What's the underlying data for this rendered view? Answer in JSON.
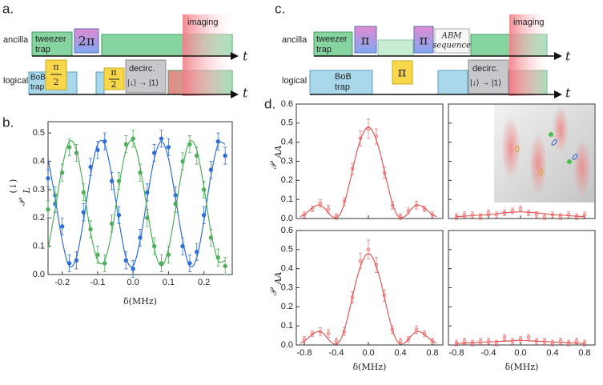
{
  "panel_labels": {
    "a": "a.",
    "c": "c."
  },
  "diagram_a": {
    "rows": [
      "ancilla",
      "logical"
    ],
    "time": [
      "t",
      "t"
    ],
    "tweezer": [
      "tweezer",
      "trap"
    ],
    "rot1": "2π",
    "imaging": "imaging",
    "bob": [
      "BoB",
      "trap"
    ],
    "half1": {
      "num": "π",
      "den": "2"
    },
    "half2": {
      "num": "π",
      "den": "2"
    },
    "decirc": [
      "decirc.",
      "|↓⟩ → |1⟩"
    ]
  },
  "diagram_c": {
    "rows": [
      "ancilla",
      "logical"
    ],
    "time": [
      "t",
      "t"
    ],
    "tweezer": [
      "tweezer",
      "trap"
    ],
    "pi1": "π",
    "pi2": "π",
    "abm": [
      "ABM",
      "sequence"
    ],
    "imaging": "imaging",
    "bob": [
      "BoB",
      "trap"
    ],
    "pi3": "π",
    "decirc": [
      "decirc.",
      "|↓⟩ → |1⟩"
    ]
  },
  "chart_data": [
    {
      "type": "scatter",
      "panel_label": "b.",
      "xlabel": "δ(MHz)",
      "ylabel": {
        "base": "𝒫",
        "sub": "L",
        "sup": "(↓)"
      },
      "xlim": [
        -0.24,
        0.28
      ],
      "ylim": [
        0,
        0.54
      ],
      "xticks": [
        -0.2,
        -0.1,
        {
          "value": 0,
          "label": "0.0"
        },
        0.1,
        0.2
      ],
      "yticks": [
        {
          "value": 0,
          "label": "0.0"
        },
        0.1,
        0.2,
        0.3,
        0.4,
        0.5
      ],
      "series": [
        {
          "style": "markers",
          "color": "#2f6fd6",
          "x": [
            -0.24,
            -0.22,
            -0.2,
            -0.18,
            -0.16,
            -0.14,
            -0.12,
            -0.1,
            -0.08,
            -0.06,
            -0.04,
            -0.02,
            0,
            0.02,
            0.04,
            0.06,
            0.08,
            0.1,
            0.12,
            0.14,
            0.16,
            0.18,
            0.2,
            0.22,
            0.24,
            0.26
          ],
          "values": [
            0.34,
            0.25,
            0.17,
            0.04,
            0.05,
            0.22,
            0.38,
            0.44,
            0.47,
            0.33,
            0.21,
            0.05,
            0.02,
            0.13,
            0.29,
            0.43,
            0.48,
            0.45,
            0.28,
            0.1,
            0.04,
            0.08,
            0.21,
            0.37,
            0.47,
            0.42
          ],
          "errors": [
            0.03,
            0.03,
            0.03,
            0.03,
            0.03,
            0.03,
            0.03,
            0.03,
            0.03,
            0.03,
            0.03,
            0.03,
            0.03,
            0.03,
            0.03,
            0.03,
            0.03,
            0.03,
            0.03,
            0.03,
            0.03,
            0.03,
            0.03,
            0.03,
            0.03,
            0.03
          ]
        },
        {
          "style": "markers",
          "color": "#4fae5c",
          "x": [
            -0.24,
            -0.22,
            -0.2,
            -0.18,
            -0.16,
            -0.14,
            -0.12,
            -0.1,
            -0.08,
            -0.06,
            -0.04,
            -0.02,
            0,
            0.02,
            0.04,
            0.06,
            0.08,
            0.1,
            0.12,
            0.14,
            0.16,
            0.18,
            0.2,
            0.22,
            0.24,
            0.26
          ],
          "values": [
            0.23,
            0.28,
            0.36,
            0.45,
            0.43,
            0.29,
            0.16,
            0.07,
            0.04,
            0.18,
            0.33,
            0.46,
            0.48,
            0.36,
            0.2,
            0.1,
            0.04,
            0.07,
            0.25,
            0.4,
            0.46,
            0.42,
            0.3,
            0.13,
            0.06,
            0.03
          ],
          "errors": [
            0.03,
            0.03,
            0.03,
            0.03,
            0.03,
            0.03,
            0.03,
            0.03,
            0.03,
            0.03,
            0.03,
            0.03,
            0.03,
            0.03,
            0.03,
            0.03,
            0.03,
            0.03,
            0.03,
            0.03,
            0.03,
            0.03,
            0.03,
            0.03,
            0.03,
            0.03
          ]
        },
        {
          "style": "line",
          "color": "#2f6fd6",
          "x": [
            -0.24,
            -0.22,
            -0.2,
            -0.18,
            -0.16,
            -0.14,
            -0.12,
            -0.1,
            -0.08,
            -0.06,
            -0.04,
            -0.02,
            0,
            0.02,
            0.04,
            0.06,
            0.08,
            0.1,
            0.12,
            0.14,
            0.16,
            0.18,
            0.2,
            0.22,
            0.24,
            0.26
          ],
          "values": [
            0.41,
            0.27,
            0.12,
            0.03,
            0.06,
            0.19,
            0.35,
            0.46,
            0.46,
            0.35,
            0.19,
            0.06,
            0.03,
            0.12,
            0.27,
            0.41,
            0.47,
            0.41,
            0.27,
            0.12,
            0.03,
            0.06,
            0.19,
            0.35,
            0.46,
            0.46
          ]
        },
        {
          "style": "line",
          "color": "#4fae5c",
          "x": [
            -0.24,
            -0.22,
            -0.2,
            -0.18,
            -0.16,
            -0.14,
            -0.12,
            -0.1,
            -0.08,
            -0.06,
            -0.04,
            -0.02,
            0,
            0.02,
            0.04,
            0.06,
            0.08,
            0.1,
            0.12,
            0.14,
            0.16,
            0.18,
            0.2,
            0.22,
            0.24,
            0.26
          ],
          "values": [
            0.09,
            0.23,
            0.38,
            0.47,
            0.44,
            0.31,
            0.15,
            0.05,
            0.05,
            0.15,
            0.31,
            0.44,
            0.47,
            0.38,
            0.23,
            0.09,
            0.03,
            0.09,
            0.23,
            0.38,
            0.47,
            0.44,
            0.31,
            0.15,
            0.05,
            0.05
          ]
        }
      ]
    },
    {
      "type": "scatter",
      "panel_label": "d.",
      "ylabel": {
        "base": "𝒫",
        "sub": "AA"
      },
      "xtick_labels": false,
      "xlim": [
        -0.9,
        0.93
      ],
      "ylim": [
        0,
        0.6
      ],
      "xticks": [
        -0.8,
        -0.4,
        {
          "value": 0,
          "label": "0.0"
        },
        0.4,
        0.8
      ],
      "yticks": [
        {
          "value": 0,
          "label": "0.0"
        },
        0.1,
        0.2,
        0.3,
        0.4,
        0.5,
        0.6
      ],
      "series": [
        {
          "style": "markers",
          "color": "#f07878",
          "x": [
            -0.8,
            -0.7,
            -0.6,
            -0.5,
            -0.4,
            -0.3,
            -0.2,
            -0.1,
            0,
            0.1,
            0.2,
            0.3,
            0.4,
            0.5,
            0.6,
            0.7,
            0.8
          ],
          "values": [
            0.02,
            0.05,
            0.08,
            0.05,
            0.01,
            0.09,
            0.26,
            0.42,
            0.47,
            0.43,
            0.24,
            0.07,
            0.01,
            0.04,
            0.07,
            0.05,
            0.02
          ],
          "errors": [
            0.015,
            0.015,
            0.02,
            0.02,
            0.015,
            0.02,
            0.03,
            0.04,
            0.05,
            0.04,
            0.03,
            0.02,
            0.015,
            0.015,
            0.02,
            0.015,
            0.015
          ]
        },
        {
          "style": "line",
          "color": "#e05a5a",
          "x": [
            -0.85,
            -0.8,
            -0.75,
            -0.7,
            -0.65,
            -0.6,
            -0.55,
            -0.5,
            -0.45,
            -0.4,
            -0.35,
            -0.3,
            -0.25,
            -0.2,
            -0.15,
            -0.1,
            -0.05,
            0,
            0.05,
            0.1,
            0.15,
            0.2,
            0.25,
            0.3,
            0.35,
            0.4,
            0.45,
            0.5,
            0.55,
            0.6,
            0.65,
            0.7,
            0.75,
            0.8,
            0.85
          ],
          "values": [
            0.01,
            0.02,
            0.038,
            0.055,
            0.068,
            0.07,
            0.055,
            0.03,
            0.01,
            0.005,
            0.025,
            0.08,
            0.16,
            0.25,
            0.34,
            0.41,
            0.46,
            0.48,
            0.46,
            0.41,
            0.34,
            0.25,
            0.16,
            0.08,
            0.025,
            0.005,
            0.01,
            0.03,
            0.055,
            0.07,
            0.068,
            0.055,
            0.038,
            0.02,
            0.01
          ]
        }
      ]
    },
    {
      "type": "scatter",
      "xtick_labels": false,
      "ytick_labels": false,
      "xlim": [
        -0.9,
        0.93
      ],
      "ylim": [
        0,
        0.6
      ],
      "xticks": [
        -0.8,
        -0.4,
        {
          "value": 0,
          "label": "0.0"
        },
        0.4,
        0.8
      ],
      "yticks": [
        {
          "value": 0,
          "label": "0.0"
        },
        0.1,
        0.2,
        0.3,
        0.4,
        0.5,
        0.6
      ],
      "series": [
        {
          "style": "markers",
          "color": "#f07878",
          "x": [
            -0.8,
            -0.7,
            -0.6,
            -0.5,
            -0.4,
            -0.3,
            -0.2,
            -0.1,
            0,
            0.1,
            0.2,
            0.3,
            0.4,
            0.5,
            0.6,
            0.7,
            0.8
          ],
          "values": [
            0.01,
            0.02,
            0.02,
            0.01,
            0.03,
            0.02,
            0.03,
            0.04,
            0.05,
            0.03,
            0.02,
            0.01,
            0.02,
            0.01,
            0.02,
            0.01,
            0.02
          ],
          "errors": [
            0.015,
            0.015,
            0.015,
            0.015,
            0.015,
            0.015,
            0.015,
            0.015,
            0.015,
            0.015,
            0.015,
            0.015,
            0.015,
            0.015,
            0.015,
            0.015,
            0.015
          ]
        },
        {
          "style": "line",
          "color": "#e05a5a",
          "x": [
            -0.8,
            -0.7,
            -0.6,
            -0.5,
            -0.4,
            -0.3,
            -0.2,
            -0.1,
            0,
            0.1,
            0.2,
            0.3,
            0.4,
            0.5,
            0.6,
            0.7,
            0.8
          ],
          "values": [
            0.01,
            0.012,
            0.015,
            0.018,
            0.02,
            0.025,
            0.03,
            0.033,
            0.035,
            0.033,
            0.03,
            0.025,
            0.02,
            0.018,
            0.015,
            0.012,
            0.01
          ]
        }
      ]
    },
    {
      "type": "scatter",
      "xlabel": "δ(MHz)",
      "ylabel": {
        "base": "𝒫",
        "sub": "AA"
      },
      "xlim": [
        -0.9,
        0.93
      ],
      "ylim": [
        0,
        0.6
      ],
      "xticks": [
        -0.8,
        -0.4,
        {
          "value": 0,
          "label": "0.0"
        },
        0.4,
        0.8
      ],
      "yticks": [
        {
          "value": 0,
          "label": "0.0"
        },
        0.1,
        0.2,
        0.3,
        0.4,
        0.5,
        0.6
      ],
      "series": [
        {
          "style": "markers",
          "color": "#f07878",
          "x": [
            -0.8,
            -0.7,
            -0.6,
            -0.5,
            -0.4,
            -0.3,
            -0.2,
            -0.1,
            0,
            0.1,
            0.2,
            0.3,
            0.4,
            0.5,
            0.6,
            0.7,
            0.8
          ],
          "values": [
            0.03,
            0.06,
            0.07,
            0.06,
            0.02,
            0.07,
            0.25,
            0.44,
            0.5,
            0.42,
            0.26,
            0.08,
            0.02,
            0.03,
            0.08,
            0.06,
            0.02
          ],
          "errors": [
            0.015,
            0.015,
            0.02,
            0.02,
            0.015,
            0.02,
            0.03,
            0.04,
            0.05,
            0.04,
            0.03,
            0.02,
            0.015,
            0.015,
            0.02,
            0.015,
            0.015
          ]
        },
        {
          "style": "line",
          "color": "#e05a5a",
          "x": [
            -0.85,
            -0.8,
            -0.75,
            -0.7,
            -0.65,
            -0.6,
            -0.55,
            -0.5,
            -0.45,
            -0.4,
            -0.35,
            -0.3,
            -0.25,
            -0.2,
            -0.15,
            -0.1,
            -0.05,
            0,
            0.05,
            0.1,
            0.15,
            0.2,
            0.25,
            0.3,
            0.35,
            0.4,
            0.45,
            0.5,
            0.55,
            0.6,
            0.65,
            0.7,
            0.75,
            0.8,
            0.85
          ],
          "values": [
            0.01,
            0.02,
            0.038,
            0.055,
            0.068,
            0.07,
            0.055,
            0.03,
            0.01,
            0.005,
            0.025,
            0.08,
            0.16,
            0.25,
            0.34,
            0.41,
            0.46,
            0.48,
            0.46,
            0.41,
            0.34,
            0.25,
            0.16,
            0.08,
            0.025,
            0.005,
            0.01,
            0.03,
            0.055,
            0.07,
            0.068,
            0.055,
            0.038,
            0.02,
            0.01
          ]
        }
      ]
    },
    {
      "type": "scatter",
      "xlabel": "δ(MHz)",
      "ytick_labels": false,
      "xlim": [
        -0.9,
        0.93
      ],
      "ylim": [
        0,
        0.6
      ],
      "xticks": [
        -0.8,
        -0.4,
        {
          "value": 0,
          "label": "0.0"
        },
        0.4,
        0.8
      ],
      "yticks": [
        {
          "value": 0,
          "label": "0.0"
        },
        0.1,
        0.2,
        0.3,
        0.4,
        0.5,
        0.6
      ],
      "series": [
        {
          "style": "markers",
          "color": "#f07878",
          "x": [
            -0.8,
            -0.7,
            -0.6,
            -0.5,
            -0.4,
            -0.3,
            -0.2,
            -0.1,
            0,
            0.1,
            0.2,
            0.3,
            0.4,
            0.5,
            0.6,
            0.7,
            0.8
          ],
          "values": [
            0.01,
            0.02,
            0.01,
            0.02,
            0.02,
            0.01,
            0.04,
            0.02,
            0.03,
            0.04,
            0.02,
            0.02,
            0.01,
            0.02,
            0.01,
            0.02,
            0.01
          ],
          "errors": [
            0.015,
            0.015,
            0.015,
            0.015,
            0.015,
            0.015,
            0.015,
            0.015,
            0.015,
            0.015,
            0.015,
            0.015,
            0.015,
            0.015,
            0.015,
            0.015,
            0.015
          ]
        },
        {
          "style": "line",
          "color": "#e05a5a",
          "x": [
            -0.8,
            -0.7,
            -0.6,
            -0.5,
            -0.4,
            -0.3,
            -0.2,
            -0.1,
            0,
            0.1,
            0.2,
            0.3,
            0.4,
            0.5,
            0.6,
            0.7,
            0.8
          ],
          "values": [
            0.008,
            0.01,
            0.012,
            0.014,
            0.016,
            0.018,
            0.02,
            0.022,
            0.024,
            0.022,
            0.02,
            0.018,
            0.016,
            0.014,
            0.012,
            0.01,
            0.008
          ]
        }
      ]
    }
  ]
}
